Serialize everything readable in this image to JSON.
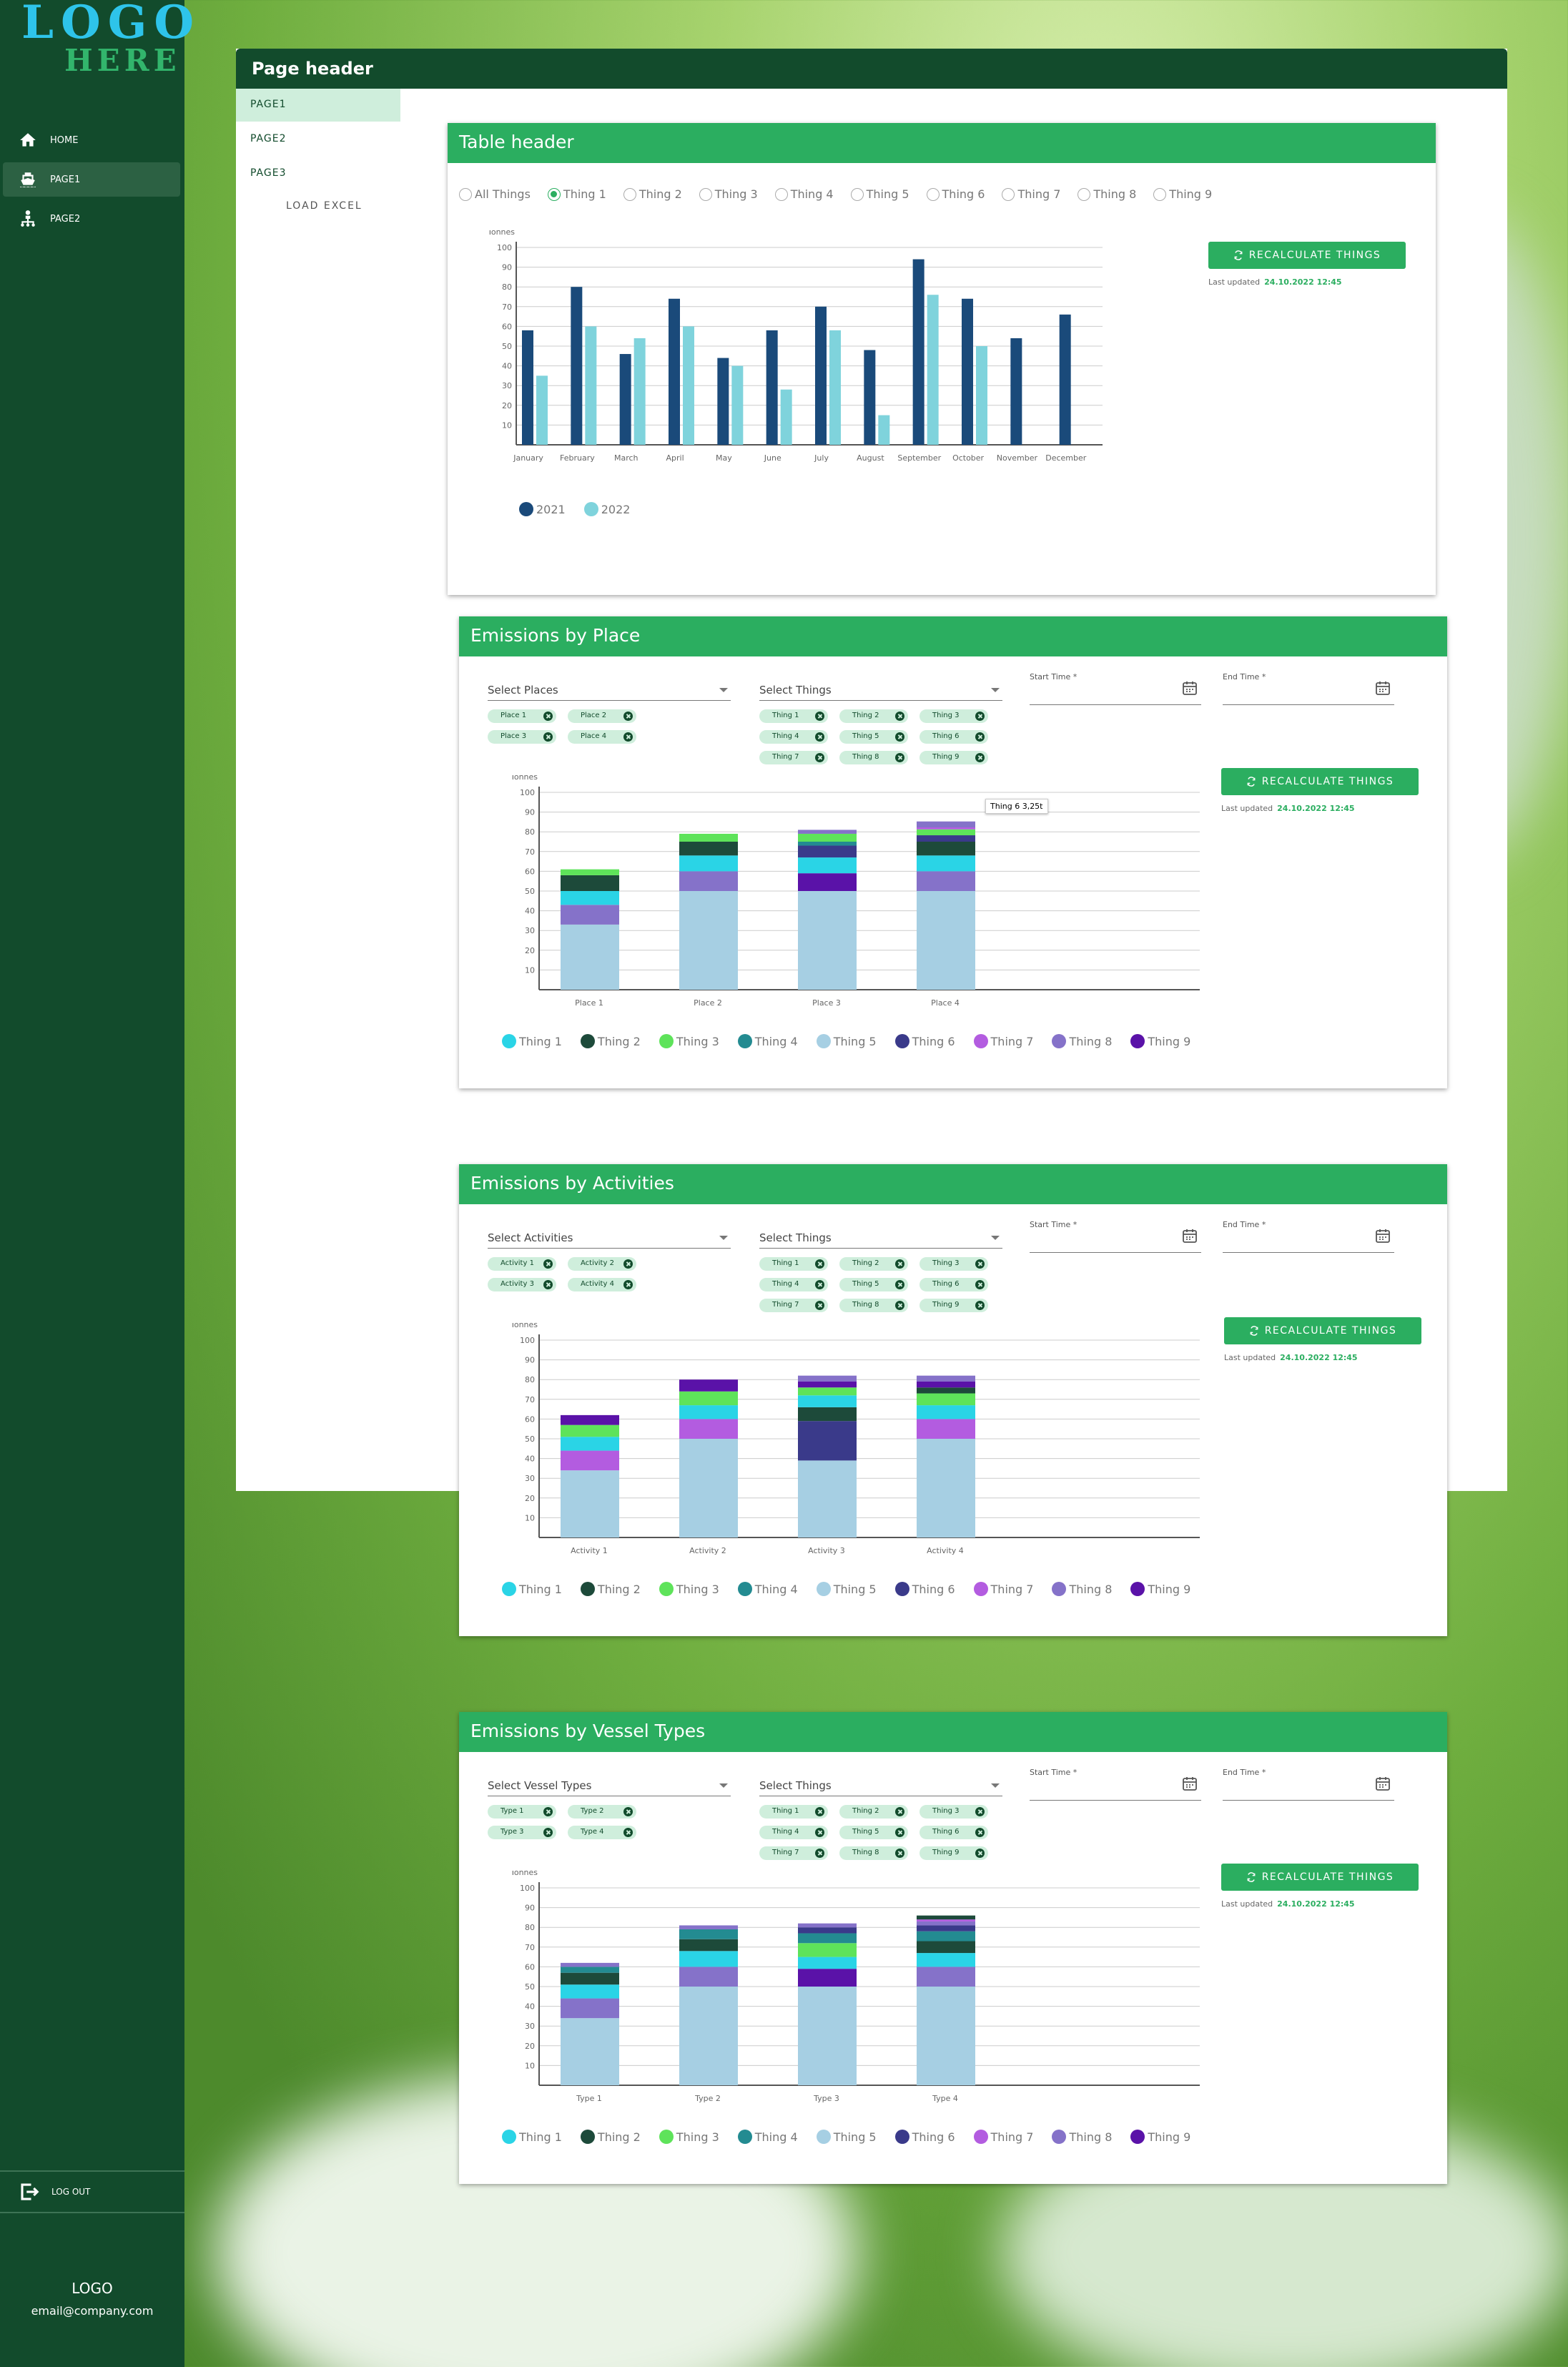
{
  "sidebar": {
    "logo_line1": "LOGO",
    "logo_line2": "HERE",
    "nav": [
      {
        "label": "HOME",
        "icon": "home-icon"
      },
      {
        "label": "PAGE1",
        "icon": "ship-icon",
        "active": true
      },
      {
        "label": "PAGE2",
        "icon": "hierarchy-icon"
      }
    ],
    "logout_label": "LOG OUT",
    "footer_logo": "LOGO",
    "footer_email": "email@company.com"
  },
  "header": {
    "title": "Page header"
  },
  "subnav": {
    "items": [
      "PAGE1",
      "PAGE2",
      "PAGE3"
    ],
    "load_excel": "LOAD EXCEL"
  },
  "colors": {
    "dark_green": "#124b2c",
    "accent_green": "#2bae60",
    "chip_bg": "#cfeedc"
  },
  "table_card": {
    "title": "Table header",
    "radios": [
      "All Things",
      "Thing 1",
      "Thing 2",
      "Thing 3",
      "Thing 4",
      "Thing 5",
      "Thing 6",
      "Thing 7",
      "Thing 8",
      "Thing 9"
    ],
    "selected_radio": "Thing 1",
    "button_label": "RECALCULATE THINGS",
    "updated_label": "Last updated",
    "updated_value": "24.10.2022  12:45"
  },
  "things": {
    "names": [
      "Thing 1",
      "Thing 2",
      "Thing 3",
      "Thing 4",
      "Thing 5",
      "Thing 6",
      "Thing 7",
      "Thing 8",
      "Thing 9"
    ],
    "colors": [
      "#2ad4e6",
      "#1d4a3a",
      "#5ee35a",
      "#238b91",
      "#a6cfe3",
      "#3a3a8a",
      "#b35ce0",
      "#8572c9",
      "#5a12a8"
    ]
  },
  "sections": [
    {
      "title": "Emissions by Place",
      "select_label": "Select Places",
      "group_chips": [
        "Place 1",
        "Place 2",
        "Place 3",
        "Place 4"
      ],
      "things_select_label": "Select Things",
      "thing_chips": [
        "Thing 1",
        "Thing 2",
        "Thing 3",
        "Thing 4",
        "Thing 5",
        "Thing 6",
        "Thing 7",
        "Thing 8",
        "Thing 9"
      ],
      "start_label": "Start Time *",
      "end_label": "End Time *",
      "button_label": "RECALCULATE THINGS",
      "updated_label": "Last updated",
      "updated_value": "24.10.2022  12:45",
      "tooltip": "Thing 6  3,25t"
    },
    {
      "title": "Emissions by Activities",
      "select_label": "Select Activities",
      "group_chips": [
        "Activity 1",
        "Activity 2",
        "Activity 3",
        "Activity 4"
      ],
      "things_select_label": "Select Things",
      "thing_chips": [
        "Thing 1",
        "Thing 2",
        "Thing 3",
        "Thing 4",
        "Thing 5",
        "Thing 6",
        "Thing 7",
        "Thing 8",
        "Thing 9"
      ],
      "start_label": "Start Time *",
      "end_label": "End Time *",
      "button_label": "RECALCULATE THINGS",
      "updated_label": "Last updated",
      "updated_value": "24.10.2022  12:45"
    },
    {
      "title": "Emissions by Vessel Types",
      "select_label": "Select Vessel Types",
      "group_chips": [
        "Type 1",
        "Type 2",
        "Type 3",
        "Type 4"
      ],
      "things_select_label": "Select Things",
      "thing_chips": [
        "Thing 1",
        "Thing 2",
        "Thing 3",
        "Thing 4",
        "Thing 5",
        "Thing 6",
        "Thing 7",
        "Thing 8",
        "Thing 9"
      ],
      "start_label": "Start Time *",
      "end_label": "End Time *",
      "button_label": "RECALCULATE THINGS",
      "updated_label": "Last updated",
      "updated_value": "24.10.2022  12:45"
    }
  ],
  "chart_data": [
    {
      "type": "bar",
      "ylabel": "Tonnes",
      "ylim": [
        0,
        100
      ],
      "yticks": [
        10,
        20,
        30,
        40,
        50,
        60,
        70,
        80,
        90,
        100
      ],
      "categories": [
        "January",
        "February",
        "March",
        "April",
        "May",
        "June",
        "July",
        "August",
        "September",
        "October",
        "November",
        "December"
      ],
      "series": [
        {
          "name": "2021",
          "color": "#1a4a7a",
          "values": [
            58,
            80,
            46,
            74,
            44,
            58,
            70,
            48,
            94,
            74,
            54,
            66
          ]
        },
        {
          "name": "2022",
          "color": "#7fd3dc",
          "values": [
            35,
            60,
            54,
            60,
            40,
            28,
            58,
            15,
            76,
            50,
            null,
            null
          ]
        }
      ],
      "legend": "bottom-left",
      "grid": true
    },
    {
      "type": "bar",
      "stacked": true,
      "ylabel": "Tonnes",
      "ylim": [
        0,
        100
      ],
      "yticks": [
        10,
        20,
        30,
        40,
        50,
        60,
        70,
        80,
        90,
        100
      ],
      "categories": [
        "Place 1",
        "Place 2",
        "Place 3",
        "Place 4"
      ],
      "series": [
        {
          "name": "Thing 5",
          "values": [
            33,
            50,
            50,
            50
          ]
        },
        {
          "name": "Thing 8",
          "values": [
            10,
            10,
            0,
            10
          ]
        },
        {
          "name": "Thing 9",
          "values": [
            0,
            0,
            9,
            0
          ]
        },
        {
          "name": "Thing 1",
          "values": [
            7,
            8,
            8,
            8
          ]
        },
        {
          "name": "Thing 2",
          "values": [
            8,
            7,
            0,
            7
          ]
        },
        {
          "name": "Thing 6",
          "values": [
            0,
            0,
            6,
            3.25
          ]
        },
        {
          "name": "Thing 4",
          "values": [
            0,
            0,
            2,
            0
          ]
        },
        {
          "name": "Thing 3",
          "values": [
            3,
            4,
            4,
            3
          ]
        },
        {
          "name": "Thing 7",
          "values": [
            0,
            0,
            0,
            1
          ]
        },
        {
          "name": "Thing 8",
          "values": [
            0,
            0,
            2,
            3
          ]
        }
      ],
      "legend": "bottom-left",
      "grid": true
    },
    {
      "type": "bar",
      "stacked": true,
      "ylabel": "Tonnes",
      "ylim": [
        0,
        100
      ],
      "yticks": [
        10,
        20,
        30,
        40,
        50,
        60,
        70,
        80,
        90,
        100
      ],
      "categories": [
        "Activity 1",
        "Activity 2",
        "Activity 3",
        "Activity 4"
      ],
      "series": [
        {
          "name": "Thing 5",
          "values": [
            34,
            50,
            39,
            50
          ]
        },
        {
          "name": "Thing 7",
          "values": [
            10,
            10,
            0,
            10
          ]
        },
        {
          "name": "Thing 6",
          "values": [
            0,
            0,
            20,
            0
          ]
        },
        {
          "name": "Thing 2",
          "values": [
            0,
            0,
            7,
            0
          ]
        },
        {
          "name": "Thing 1",
          "values": [
            7,
            7,
            6,
            7
          ]
        },
        {
          "name": "Thing 3",
          "values": [
            6,
            7,
            4,
            6
          ]
        },
        {
          "name": "Thing 2",
          "values": [
            0,
            0,
            0,
            3
          ]
        },
        {
          "name": "Thing 9",
          "values": [
            5,
            6,
            3,
            3
          ]
        },
        {
          "name": "Thing 8",
          "values": [
            0,
            0,
            3,
            3
          ]
        }
      ],
      "legend": "bottom-left",
      "grid": true
    },
    {
      "type": "bar",
      "stacked": true,
      "ylabel": "Tonnes",
      "ylim": [
        0,
        100
      ],
      "yticks": [
        10,
        20,
        30,
        40,
        50,
        60,
        70,
        80,
        90,
        100
      ],
      "categories": [
        "Type 1",
        "Type 2",
        "Type 3",
        "Type 4"
      ],
      "series": [
        {
          "name": "Thing 5",
          "values": [
            34,
            50,
            50,
            50
          ]
        },
        {
          "name": "Thing 8",
          "values": [
            10,
            10,
            0,
            10
          ]
        },
        {
          "name": "Thing 9",
          "values": [
            0,
            0,
            9,
            0
          ]
        },
        {
          "name": "Thing 1",
          "values": [
            7,
            8,
            6,
            7
          ]
        },
        {
          "name": "Thing 2",
          "values": [
            6,
            6,
            0,
            6
          ]
        },
        {
          "name": "Thing 3",
          "values": [
            0,
            0,
            7,
            0
          ]
        },
        {
          "name": "Thing 4",
          "values": [
            3,
            5,
            5,
            5
          ]
        },
        {
          "name": "Thing 6",
          "values": [
            0,
            0,
            3,
            3
          ]
        },
        {
          "name": "Thing 8",
          "values": [
            2,
            2,
            2,
            2
          ]
        },
        {
          "name": "Thing 7",
          "values": [
            0,
            0,
            0,
            1
          ]
        },
        {
          "name": "Thing 2",
          "values": [
            0,
            0,
            0,
            2
          ]
        }
      ],
      "legend": "bottom-left",
      "grid": true
    }
  ]
}
